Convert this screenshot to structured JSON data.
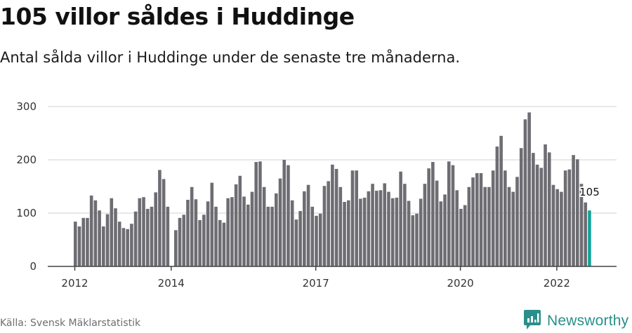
{
  "header": {
    "title": "105 villor såldes i Huddinge",
    "subtitle": "Antal sålda villor i Huddinge under de senaste tre månaderna."
  },
  "footer": {
    "source": "Källa: Svensk Mäklarstatistik",
    "brand": "Newsworthy"
  },
  "colors": {
    "bar": "#6e6d73",
    "highlight": "#14a39a",
    "grid": "#e0e0e0",
    "axis": "#444444",
    "brand": "#2a8f8a"
  },
  "chart_data": {
    "type": "bar",
    "title": "105 villor såldes i Huddinge",
    "subtitle": "Antal sålda villor i Huddinge under de senaste tre månaderna.",
    "xlabel": "",
    "ylabel": "",
    "ylim": [
      0,
      300
    ],
    "yticks": [
      0,
      100,
      200,
      300
    ],
    "xticks": [
      {
        "label": "2012",
        "index": 0
      },
      {
        "label": "2014",
        "index": 24
      },
      {
        "label": "2017",
        "index": 60
      },
      {
        "label": "2020",
        "index": 96
      },
      {
        "label": "2022",
        "index": 120
      }
    ],
    "grid": true,
    "legend": "none",
    "start": "2012-01",
    "frequency": "monthly",
    "highlight_last": true,
    "last_label": "105",
    "values": [
      84,
      75,
      91,
      91,
      133,
      124,
      105,
      75,
      98,
      128,
      109,
      84,
      72,
      70,
      80,
      103,
      128,
      130,
      108,
      112,
      139,
      181,
      164,
      112,
      null,
      68,
      91,
      97,
      125,
      149,
      126,
      87,
      97,
      122,
      157,
      112,
      87,
      82,
      128,
      130,
      154,
      170,
      131,
      116,
      140,
      196,
      197,
      149,
      112,
      112,
      137,
      165,
      200,
      190,
      124,
      88,
      104,
      141,
      153,
      112,
      95,
      99,
      151,
      160,
      191,
      183,
      149,
      121,
      124,
      180,
      180,
      127,
      129,
      141,
      155,
      142,
      143,
      156,
      140,
      128,
      129,
      178,
      155,
      123,
      96,
      99,
      127,
      155,
      184,
      196,
      161,
      122,
      135,
      197,
      190,
      143,
      108,
      115,
      149,
      167,
      175,
      175,
      149,
      149,
      180,
      225,
      245,
      180,
      149,
      140,
      168,
      222,
      276,
      289,
      213,
      191,
      185,
      229,
      214,
      153,
      145,
      140,
      180,
      182,
      209,
      201,
      155,
      120,
      105
    ]
  }
}
